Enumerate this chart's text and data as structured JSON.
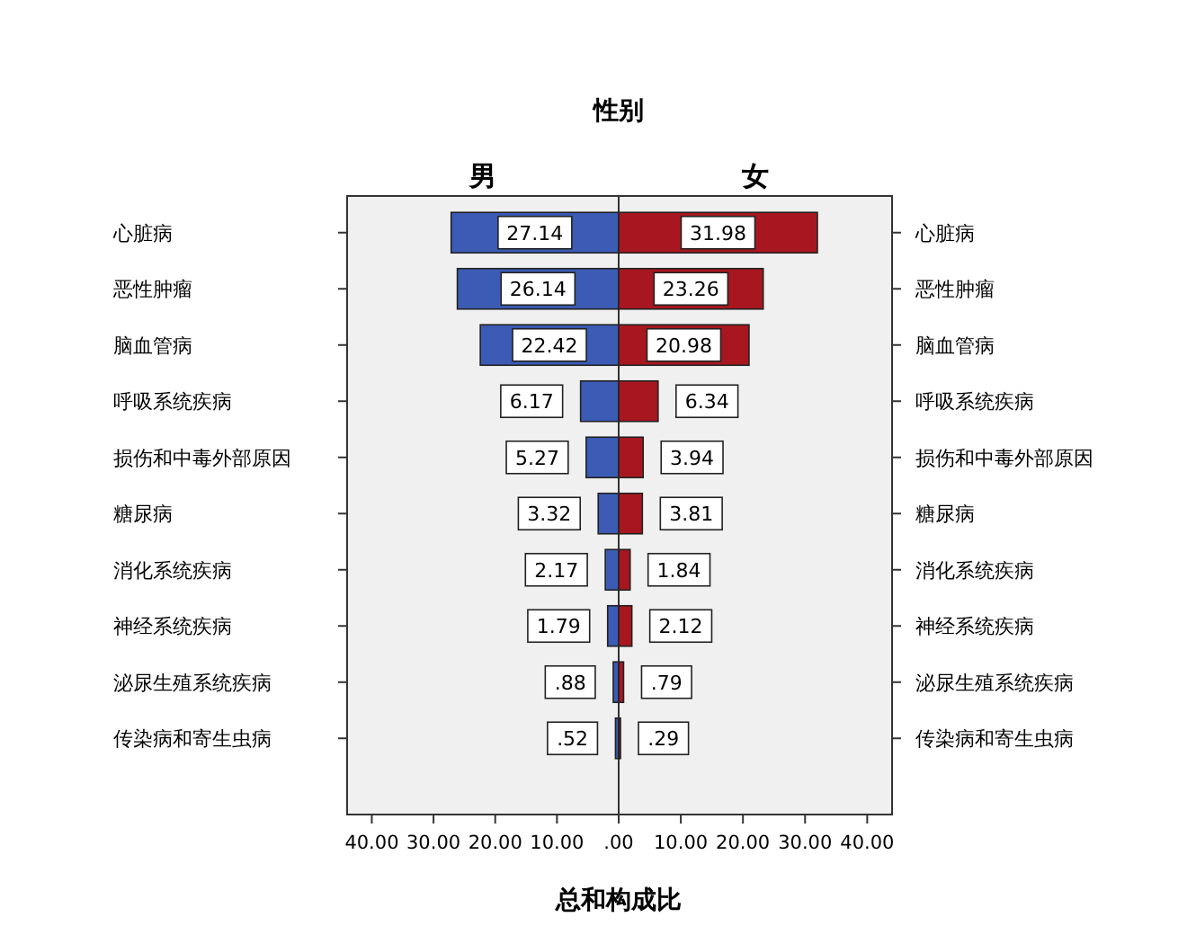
{
  "chart_data": [
    {
      "type": "bar",
      "orientation": "horizontal",
      "title": "男",
      "annotations": [
        "性别"
      ],
      "xlabel": "总和构成比",
      "categories": [
        "心脏病",
        "恶性肿瘤",
        "脑血管病",
        "呼吸系统疾病",
        "损伤和中毒外部原因",
        "糖尿病",
        "消化系统疾病",
        "神经系统疾病",
        "泌尿生殖系统疾病",
        "传染病和寄生虫病"
      ],
      "values": [
        27.14,
        26.14,
        22.42,
        6.17,
        5.27,
        3.32,
        2.17,
        1.79,
        0.88,
        0.52
      ],
      "value_labels": [
        "27.14",
        "26.14",
        "22.42",
        "6.17",
        "5.27",
        "3.32",
        "2.17",
        "1.79",
        ".88",
        ".52"
      ],
      "color": "#3b5bb5",
      "xlim": [
        44,
        0
      ],
      "xticks": [
        {
          "value": 40,
          "label": "40.00"
        },
        {
          "value": 30,
          "label": "30.00"
        },
        {
          "value": 20,
          "label": "20.00"
        },
        {
          "value": 10,
          "label": "10.00"
        },
        {
          "value": 0,
          "label": ".00"
        }
      ],
      "grid": false
    },
    {
      "type": "bar",
      "orientation": "horizontal",
      "title": "女",
      "categories": [
        "心脏病",
        "恶性肿瘤",
        "脑血管病",
        "呼吸系统疾病",
        "损伤和中毒外部原因",
        "糖尿病",
        "消化系统疾病",
        "神经系统疾病",
        "泌尿生殖系统疾病",
        "传染病和寄生虫病"
      ],
      "values": [
        31.98,
        23.26,
        20.98,
        6.34,
        3.94,
        3.81,
        1.84,
        2.12,
        0.79,
        0.29
      ],
      "value_labels": [
        "31.98",
        "23.26",
        "20.98",
        "6.34",
        "3.94",
        "3.81",
        "1.84",
        "2.12",
        ".79",
        ".29"
      ],
      "color": "#a8171f",
      "xlim": [
        0,
        44
      ],
      "xticks": [
        {
          "value": 10,
          "label": "10.00"
        },
        {
          "value": 20,
          "label": "20.00"
        },
        {
          "value": 30,
          "label": "30.00"
        },
        {
          "value": 40,
          "label": "40.00"
        }
      ],
      "grid": false
    }
  ]
}
